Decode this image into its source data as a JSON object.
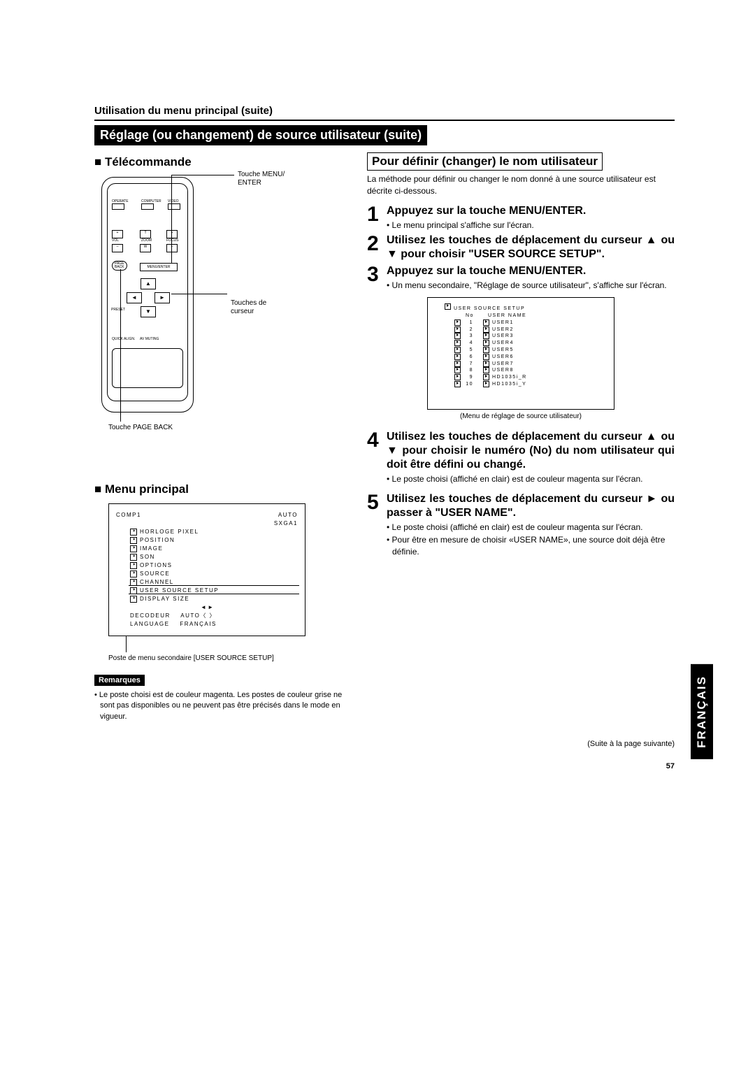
{
  "header": {
    "section": "Utilisation du menu principal (suite)",
    "title": "Réglage (ou changement) de source utilisateur (suite)"
  },
  "left": {
    "remote_heading": "Télécommande",
    "remote_labels": {
      "menu_enter": "Touche MENU/\nENTER",
      "cursor": "Touches de\ncurseur",
      "page_back": "Touche PAGE BACK",
      "operate": "OPERATE",
      "computer": "COMPUTER",
      "video": "VIDEO",
      "vol": "VOL",
      "zoom": "ZOOM",
      "focus": "FOCUS",
      "t": "T",
      "w": "W",
      "plus": "+",
      "minus": "–",
      "page": "PAGE",
      "back": "BACK",
      "menu_enter_btn": "MENU/ENTER",
      "preset": "PRESET",
      "quick_align": "QUICK\nALIGN.",
      "av_muting": "AV\nMUTING"
    },
    "menu_heading": "Menu principal",
    "menu_box": {
      "top_left": "COMP1",
      "top_right1": "AUTO",
      "top_right2": "SXGA1",
      "items": [
        "HORLOGE PIXEL",
        "POSITION",
        "IMAGE",
        "SON",
        "OPTIONS",
        "SOURCE",
        "CHANNEL",
        "USER SOURCE SETUP",
        "DISPLAY SIZE"
      ],
      "decoder_label": "DECODEUR",
      "decoder_value": "AUTO〈              〉",
      "language_label": "LANGUAGE",
      "language_value": "FRANÇAIS"
    },
    "menu_caption": "Poste de menu secondaire [USER SOURCE SETUP]",
    "remarques_label": "Remarques",
    "remarques_text": "• Le poste choisi est de couleur magenta. Les postes de couleur grise ne sont pas disponibles ou ne peuvent pas être précisés dans le mode en vigueur."
  },
  "right": {
    "box_title": "Pour définir (changer) le nom utilisateur",
    "intro": "La méthode pour définir ou changer le nom donné à une source utilisateur est décrite ci-dessous.",
    "steps": [
      {
        "num": "1",
        "title": "Appuyez sur la touche MENU/ENTER.",
        "bullets": [
          "• Le menu principal s'affiche sur l'écran."
        ]
      },
      {
        "num": "2",
        "title": "Utilisez les touches de déplacement du curseur ▲ ou ▼ pour choisir \"USER SOURCE SETUP\".",
        "bullets": []
      },
      {
        "num": "3",
        "title": "Appuyez sur la touche MENU/ENTER.",
        "bullets": [
          "• Un menu secondaire, \"Réglage de source utilisateur\", s'affiche sur l'écran."
        ]
      },
      {
        "num": "4",
        "title": "Utilisez les touches de déplacement du curseur ▲ ou ▼ pour choisir le numéro (No) du nom utilisateur qui doit être défini ou changé.",
        "bullets": [
          "• Le poste choisi (affiché en clair) est de couleur magenta sur l'écran."
        ]
      },
      {
        "num": "5",
        "title": "Utilisez les touches de déplacement du curseur ► ou passer à \"USER NAME\".",
        "bullets": [
          "• Le poste choisi (affiché en clair) est de couleur magenta sur l'écran.",
          "• Pour être en mesure de choisir «USER NAME», une source doit déjà être définie."
        ]
      }
    ],
    "uss_box": {
      "title": "USER SOURCE SETUP",
      "header_no": "No",
      "header_name": "USER NAME",
      "rows": [
        {
          "n": "1",
          "name": "USER1"
        },
        {
          "n": "2",
          "name": "USER2"
        },
        {
          "n": "3",
          "name": "USER3"
        },
        {
          "n": "4",
          "name": "USER4"
        },
        {
          "n": "5",
          "name": "USER5"
        },
        {
          "n": "6",
          "name": "USER6"
        },
        {
          "n": "7",
          "name": "USER7"
        },
        {
          "n": "8",
          "name": "USER8"
        },
        {
          "n": "9",
          "name": "HD1035i_R"
        },
        {
          "n": "10",
          "name": "HD1035i_Y"
        }
      ]
    },
    "uss_caption": "(Menu de réglage de source utilisateur)"
  },
  "footer": {
    "suite": "(Suite à la page suivante)",
    "page": "57"
  },
  "lang_tab": "FRANÇAIS"
}
